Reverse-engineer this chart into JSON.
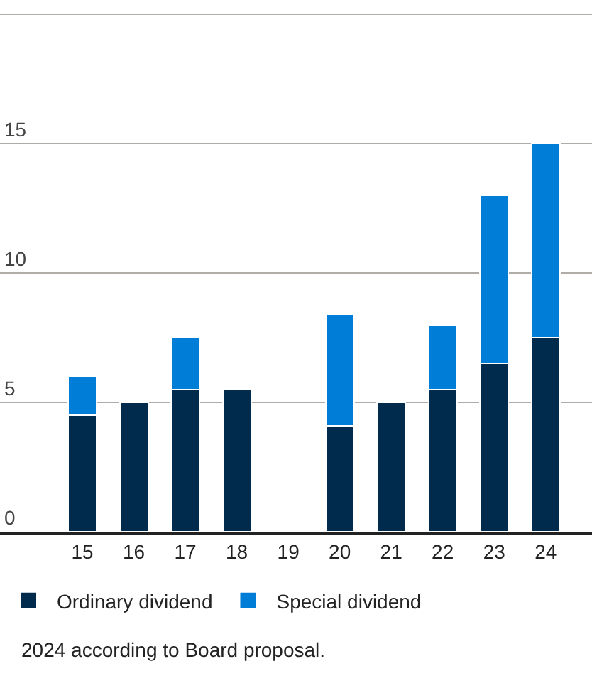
{
  "chart_data": {
    "type": "bar",
    "stacked": true,
    "categories": [
      "15",
      "16",
      "17",
      "18",
      "19",
      "20",
      "21",
      "22",
      "23",
      "24"
    ],
    "series": [
      {
        "name": "Ordinary dividend",
        "color": "#002b4d",
        "values": [
          4.5,
          5.0,
          5.5,
          5.5,
          null,
          4.1,
          5.0,
          5.5,
          6.5,
          7.5
        ]
      },
      {
        "name": "Special dividend",
        "color": "#007dd6",
        "values": [
          1.5,
          null,
          2.0,
          null,
          null,
          4.3,
          null,
          2.5,
          6.5,
          7.5
        ]
      }
    ],
    "ylim": [
      0,
      20
    ],
    "yticks": [
      0,
      5,
      10,
      15,
      {
        "value": 20,
        "label": null
      }
    ],
    "grid": "y",
    "legend": "bottom",
    "annotations": [
      "2024 according to Board proposal."
    ]
  }
}
